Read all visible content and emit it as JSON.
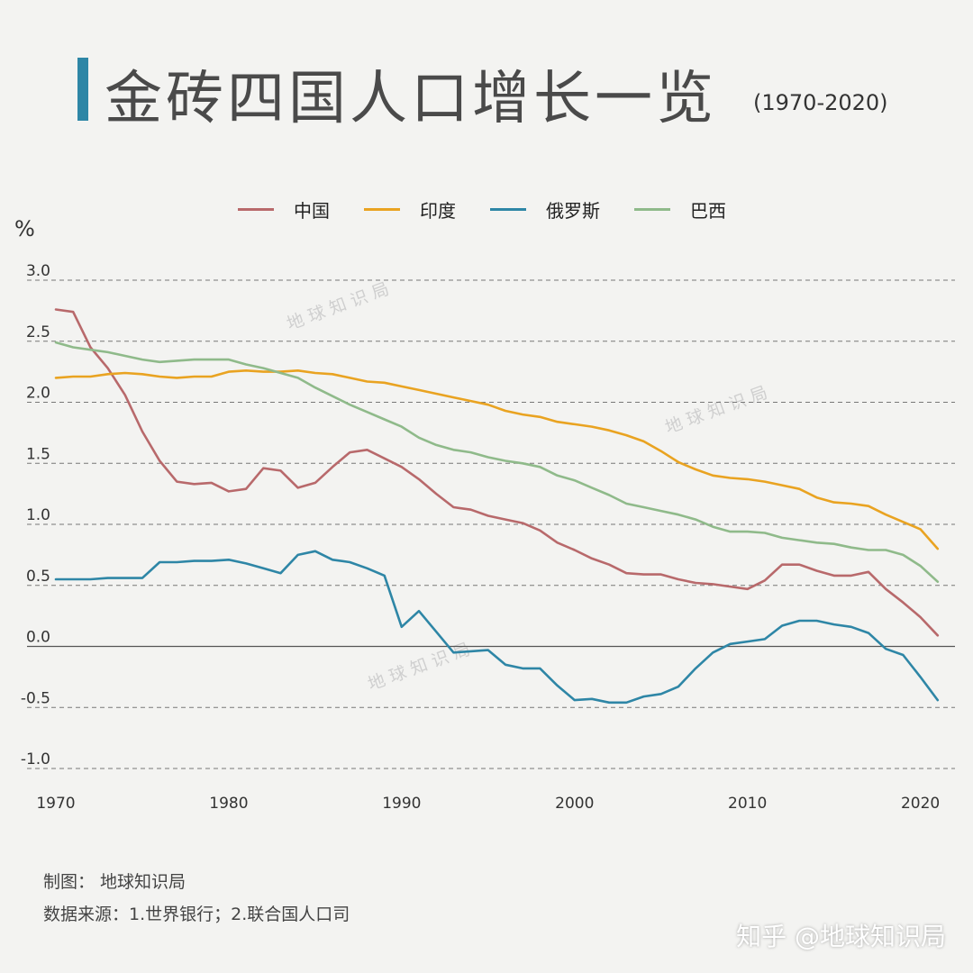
{
  "title": "金砖四国人口增长一览",
  "subtitle": "(1970-2020)",
  "unit_label": "%",
  "watermark": "地球知识局",
  "footer": {
    "maker": "制图：  地球知识局",
    "source": "数据来源：1.世界银行；2.联合国人口司"
  },
  "credit": "知乎 @地球知识局",
  "chart_data": {
    "type": "line",
    "title": "金砖四国人口增长一览",
    "ylabel": "%",
    "xlim": [
      1970,
      2022
    ],
    "ylim": [
      -1.0,
      3.0
    ],
    "x_ticks": [
      "1970",
      "1980",
      "1990",
      "2000",
      "2010",
      "2020"
    ],
    "y_ticks": [
      "3.0",
      "2.5",
      "2.0",
      "1.5",
      "1.0",
      "0.5",
      "0.0",
      "-0.5",
      "-1.0"
    ],
    "grid": "horizontal-dashed",
    "legend_position": "top",
    "x": [
      1970,
      1971,
      1972,
      1973,
      1974,
      1975,
      1976,
      1977,
      1978,
      1979,
      1980,
      1981,
      1982,
      1983,
      1984,
      1985,
      1986,
      1987,
      1988,
      1989,
      1990,
      1991,
      1992,
      1993,
      1994,
      1995,
      1996,
      1997,
      1998,
      1999,
      2000,
      2001,
      2002,
      2003,
      2004,
      2005,
      2006,
      2007,
      2008,
      2009,
      2010,
      2011,
      2012,
      2013,
      2014,
      2015,
      2016,
      2017,
      2018,
      2019,
      2020,
      2021
    ],
    "series": [
      {
        "name": "中国",
        "color": "#b8696b",
        "values": [
          2.76,
          2.74,
          2.45,
          2.28,
          2.06,
          1.76,
          1.52,
          1.35,
          1.33,
          1.34,
          1.27,
          1.29,
          1.46,
          1.44,
          1.3,
          1.34,
          1.47,
          1.59,
          1.61,
          1.54,
          1.47,
          1.37,
          1.25,
          1.14,
          1.12,
          1.07,
          1.04,
          1.01,
          0.95,
          0.85,
          0.79,
          0.72,
          0.67,
          0.6,
          0.59,
          0.59,
          0.55,
          0.52,
          0.51,
          0.49,
          0.47,
          0.54,
          0.67,
          0.67,
          0.62,
          0.58,
          0.58,
          0.61,
          0.47,
          0.36,
          0.24,
          0.09
        ]
      },
      {
        "name": "印度",
        "color": "#e9a321",
        "values": [
          2.2,
          2.21,
          2.21,
          2.23,
          2.24,
          2.23,
          2.21,
          2.2,
          2.21,
          2.21,
          2.25,
          2.26,
          2.25,
          2.25,
          2.26,
          2.24,
          2.23,
          2.2,
          2.17,
          2.16,
          2.13,
          2.1,
          2.07,
          2.04,
          2.01,
          1.98,
          1.93,
          1.9,
          1.88,
          1.84,
          1.82,
          1.8,
          1.77,
          1.73,
          1.68,
          1.6,
          1.51,
          1.45,
          1.4,
          1.38,
          1.37,
          1.35,
          1.32,
          1.29,
          1.22,
          1.18,
          1.17,
          1.15,
          1.08,
          1.02,
          0.96,
          0.8
        ]
      },
      {
        "name": "俄罗斯",
        "color": "#2e86a6",
        "values": [
          0.55,
          0.55,
          0.55,
          0.56,
          0.56,
          0.56,
          0.69,
          0.69,
          0.7,
          0.7,
          0.71,
          0.68,
          0.64,
          0.6,
          0.75,
          0.78,
          0.71,
          0.69,
          0.64,
          0.58,
          0.16,
          0.29,
          0.12,
          -0.05,
          -0.04,
          -0.03,
          -0.15,
          -0.18,
          -0.18,
          -0.32,
          -0.44,
          -0.43,
          -0.46,
          -0.46,
          -0.41,
          -0.39,
          -0.33,
          -0.18,
          -0.05,
          0.02,
          0.04,
          0.06,
          0.17,
          0.21,
          0.21,
          0.18,
          0.16,
          0.11,
          -0.02,
          -0.07,
          -0.25,
          -0.44
        ]
      },
      {
        "name": "巴西",
        "color": "#8fba8a",
        "values": [
          2.49,
          2.45,
          2.43,
          2.41,
          2.38,
          2.35,
          2.33,
          2.34,
          2.35,
          2.35,
          2.35,
          2.31,
          2.28,
          2.24,
          2.2,
          2.12,
          2.05,
          1.98,
          1.92,
          1.86,
          1.8,
          1.71,
          1.65,
          1.61,
          1.59,
          1.55,
          1.52,
          1.5,
          1.47,
          1.4,
          1.36,
          1.3,
          1.24,
          1.17,
          1.14,
          1.11,
          1.08,
          1.04,
          0.98,
          0.94,
          0.94,
          0.93,
          0.89,
          0.87,
          0.85,
          0.84,
          0.81,
          0.79,
          0.79,
          0.75,
          0.66,
          0.53
        ]
      }
    ]
  }
}
